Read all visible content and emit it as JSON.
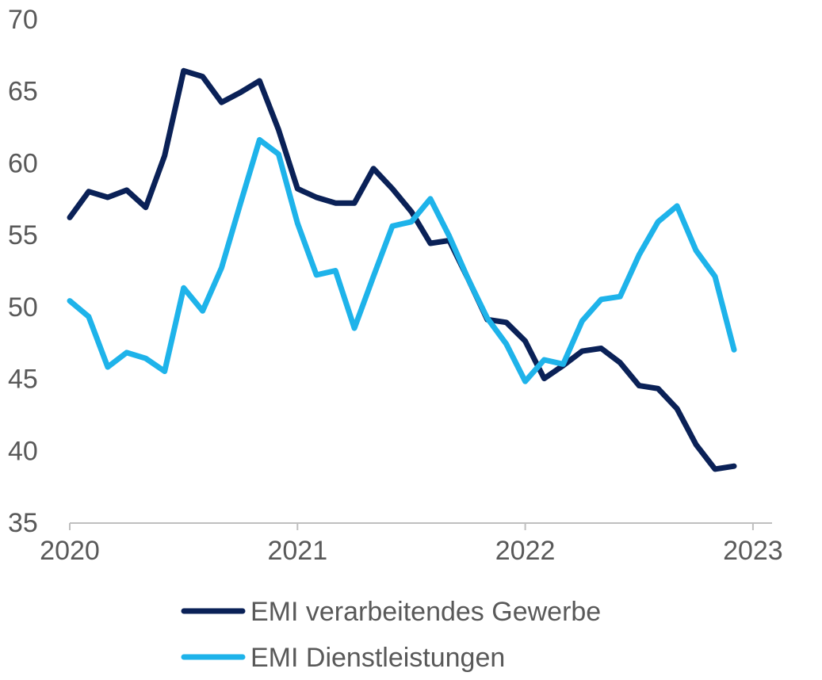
{
  "chart_data": {
    "type": "line",
    "title": "",
    "xlabel": "",
    "ylabel": "",
    "ylim": [
      35,
      70
    ],
    "yticks": [
      35,
      40,
      45,
      50,
      55,
      60,
      65,
      70
    ],
    "xticks": [
      "2020",
      "2021",
      "2022",
      "2023"
    ],
    "grid": false,
    "legend": "bottom",
    "x": [
      "2020-01",
      "2020-02",
      "2020-03",
      "2020-04",
      "2020-05",
      "2020-06",
      "2020-07",
      "2020-08",
      "2020-09",
      "2020-10",
      "2020-11",
      "2020-12",
      "2021-01",
      "2021-02",
      "2021-03",
      "2021-04",
      "2021-05",
      "2021-06",
      "2021-07",
      "2021-08",
      "2021-09",
      "2021-10",
      "2021-11",
      "2021-12",
      "2022-01",
      "2022-02",
      "2022-03",
      "2022-04",
      "2022-05",
      "2022-06",
      "2022-07",
      "2022-08",
      "2022-09",
      "2022-10",
      "2022-11",
      "2022-12"
    ],
    "series": [
      {
        "name": "EMI verarbeitendes Gewerbe",
        "color": "#0a2157",
        "values": [
          56.2,
          58.0,
          57.6,
          58.1,
          56.9,
          60.5,
          66.4,
          66.0,
          64.2,
          64.9,
          65.7,
          62.3,
          58.2,
          57.6,
          57.2,
          57.2,
          59.6,
          58.2,
          56.6,
          54.4,
          54.6,
          51.9,
          49.1,
          48.9,
          47.6,
          45.0,
          45.9,
          46.9,
          47.1,
          46.1,
          44.5,
          44.3,
          42.9,
          40.4,
          38.7,
          38.9
        ]
      },
      {
        "name": "EMI Dienstleistungen",
        "color": "#1eb3ea",
        "values": [
          50.4,
          49.3,
          45.8,
          46.8,
          46.4,
          45.5,
          51.3,
          49.7,
          52.7,
          57.2,
          61.6,
          60.6,
          55.8,
          52.2,
          52.5,
          48.5,
          52.1,
          55.6,
          55.9,
          57.5,
          54.9,
          51.9,
          49.2,
          47.4,
          44.8,
          46.3,
          46.0,
          49.0,
          50.5,
          50.7,
          53.6,
          55.9,
          57.0,
          53.9,
          52.1,
          47.0
        ]
      }
    ]
  }
}
